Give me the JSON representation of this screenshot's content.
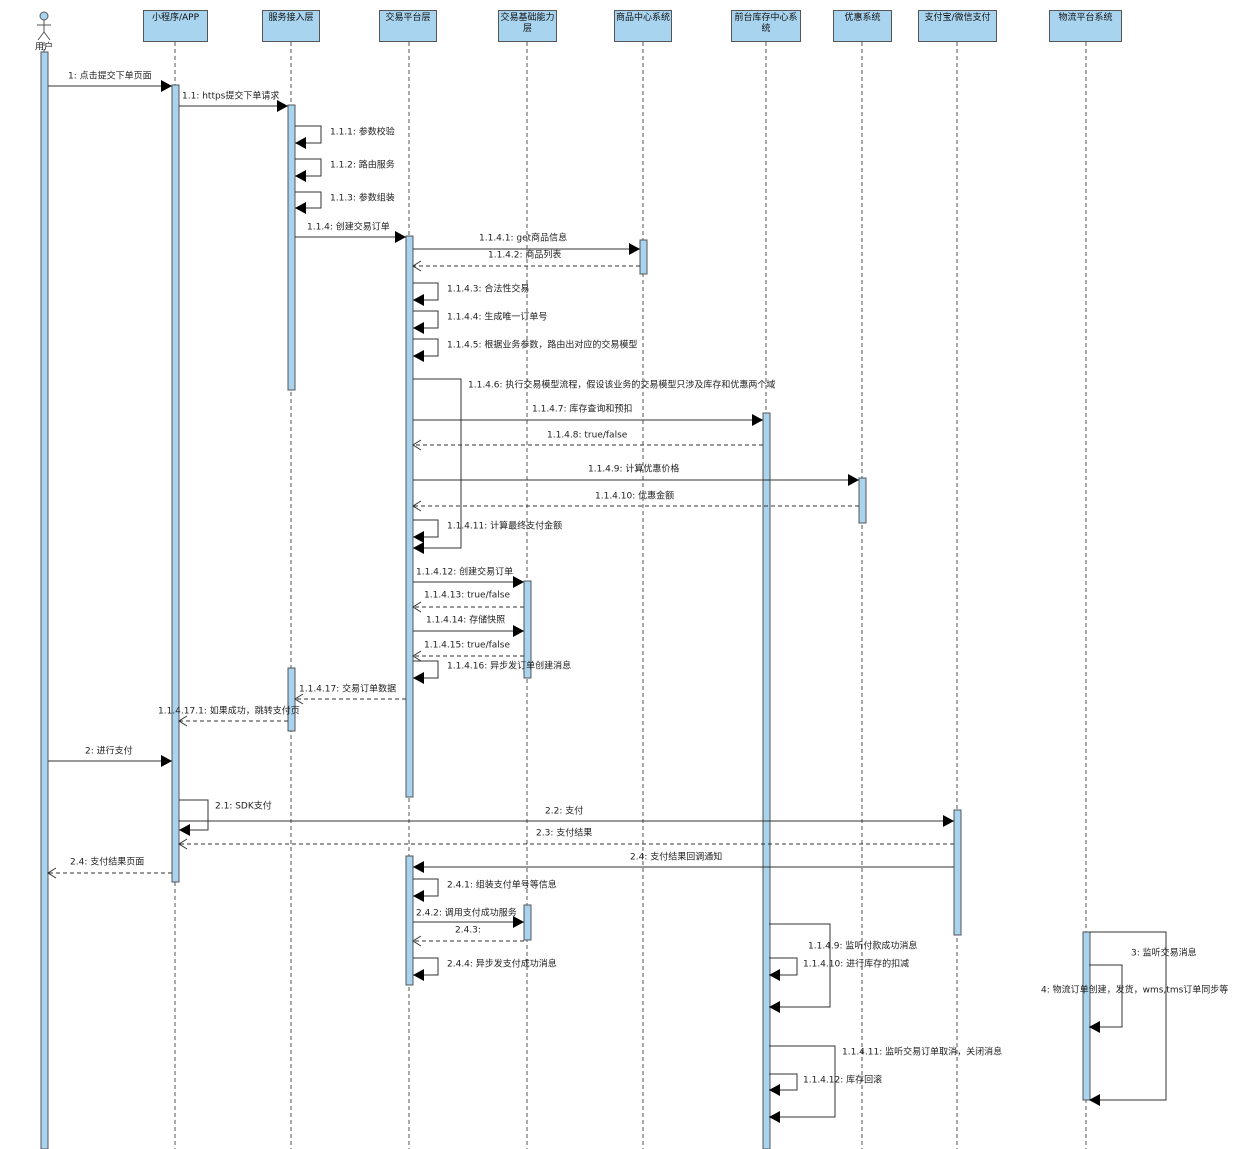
{
  "lifelines": [
    {
      "label": "用户"
    },
    {
      "label": "小程序/APP"
    },
    {
      "label": "服务接入层"
    },
    {
      "label": "交易平台层"
    },
    {
      "label": "交易基础能力层"
    },
    {
      "label": "商品中心系统"
    },
    {
      "label": "前台库存中心系统"
    },
    {
      "label": "优惠系统"
    },
    {
      "label": "支付宝/微信支付"
    },
    {
      "label": "物流平台系统"
    }
  ],
  "messages": [
    {
      "label": "1: 点击提交下单页面"
    },
    {
      "label": "1.1: https提交下单请求"
    },
    {
      "label": "1.1.1: 参数校验"
    },
    {
      "label": "1.1.2: 路由服务"
    },
    {
      "label": "1.1.3: 参数组装"
    },
    {
      "label": "1.1.4: 创建交易订单"
    },
    {
      "label": "1.1.4.1: get商品信息"
    },
    {
      "label": "1.1.4.2: 商品列表"
    },
    {
      "label": "1.1.4.3: 合法性交易"
    },
    {
      "label": "1.1.4.4: 生成唯一订单号"
    },
    {
      "label": "1.1.4.5: 根据业务参数，路由出对应的交易模型"
    },
    {
      "label": "1.1.4.6: 执行交易模型流程，假设该业务的交易模型只涉及库存和优惠两个域"
    },
    {
      "label": "1.1.4.7: 库存查询和预扣"
    },
    {
      "label": "1.1.4.8: true/false"
    },
    {
      "label": "1.1.4.9: 计算优惠价格"
    },
    {
      "label": "1.1.4.10: 优惠金额"
    },
    {
      "label": "1.1.4.11: 计算最终支付金额"
    },
    {
      "label": "1.1.4.12: 创建交易订单"
    },
    {
      "label": "1.1.4.13: true/false"
    },
    {
      "label": "1.1.4.14: 存储快照"
    },
    {
      "label": "1.1.4.15: true/false"
    },
    {
      "label": "1.1.4.16: 异步发订单创建消息"
    },
    {
      "label": "1.1.4.17: 交易订单数据"
    },
    {
      "label": "1.1.4.17.1: 如果成功，跳转支付页"
    },
    {
      "label": "2: 进行支付"
    },
    {
      "label": "2.1: SDK支付"
    },
    {
      "label": "2.2: 支付"
    },
    {
      "label": "2.3: 支付结果"
    },
    {
      "label": "2.4: 支付结果回调通知"
    },
    {
      "label": "2.4: 支付结果页面"
    },
    {
      "label": "2.4.1: 组装支付单号等信息"
    },
    {
      "label": "2.4.2: 调用支付成功服务"
    },
    {
      "label": "2.4.3:"
    },
    {
      "label": "2.4.4: 异步发支付成功消息"
    },
    {
      "label": "1.1.4.9: 监听付款成功消息"
    },
    {
      "label": "1.1.4.10: 进行库存的扣减"
    },
    {
      "label": "1.1.4.11: 监听交易订单取消，关闭消息"
    },
    {
      "label": "1.1.4.12: 库存回滚"
    },
    {
      "label": "3: 监听交易消息"
    },
    {
      "label": "4: 物流订单创建，发货，wms,tms订单同步等"
    }
  ]
}
